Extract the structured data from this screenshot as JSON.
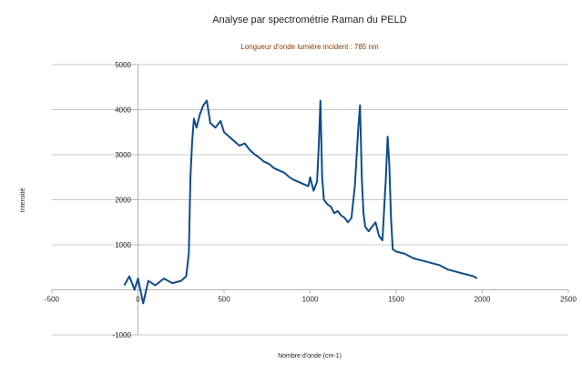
{
  "chart_data": {
    "type": "line",
    "title": "Analyse par spectrométrie Raman du PELD",
    "subtitle": "Longueur d'onde lumière incident : 785 nm",
    "xlabel": "Nombre d'onde (cm-1)",
    "ylabel": "Intensité",
    "xlim": [
      -500,
      2500
    ],
    "ylim": [
      -1000,
      5000
    ],
    "x_ticks": [
      -500,
      0,
      500,
      1000,
      1500,
      2000,
      2500
    ],
    "y_ticks": [
      -1000,
      0,
      1000,
      2000,
      3000,
      4000,
      5000
    ],
    "x_tick_labels": [
      "-500",
      "0",
      "500",
      "1000",
      "1500",
      "2000",
      "2500"
    ],
    "y_tick_labels": [
      "-1000",
      "",
      "1000",
      "2000",
      "3000",
      "4000",
      "5000"
    ],
    "grid": "horizontal",
    "legend": "none",
    "series": [
      {
        "color": "#0f4c8a",
        "x": [
          -80,
          -50,
          -20,
          0,
          30,
          60,
          100,
          150,
          200,
          250,
          280,
          295,
          305,
          315,
          325,
          340,
          360,
          380,
          400,
          420,
          450,
          480,
          500,
          530,
          560,
          590,
          620,
          650,
          680,
          700,
          730,
          760,
          790,
          820,
          850,
          880,
          900,
          930,
          960,
          990,
          1000,
          1020,
          1040,
          1050,
          1060,
          1070,
          1080,
          1100,
          1120,
          1140,
          1160,
          1180,
          1200,
          1220,
          1240,
          1260,
          1280,
          1290,
          1300,
          1310,
          1320,
          1340,
          1360,
          1380,
          1400,
          1420,
          1440,
          1450,
          1460,
          1470,
          1480,
          1500,
          1550,
          1600,
          1650,
          1700,
          1750,
          1800,
          1850,
          1900,
          1950,
          1970
        ],
        "y": [
          100,
          300,
          0,
          250,
          -300,
          200,
          100,
          250,
          150,
          200,
          300,
          800,
          2500,
          3300,
          3800,
          3600,
          3900,
          4100,
          4200,
          3700,
          3600,
          3750,
          3500,
          3400,
          3300,
          3200,
          3250,
          3100,
          3000,
          2950,
          2850,
          2800,
          2700,
          2650,
          2600,
          2500,
          2450,
          2400,
          2350,
          2300,
          2500,
          2200,
          2400,
          3200,
          4200,
          2500,
          2000,
          1900,
          1850,
          1700,
          1750,
          1650,
          1600,
          1500,
          1600,
          2300,
          3600,
          4100,
          2500,
          1700,
          1400,
          1300,
          1400,
          1500,
          1200,
          1100,
          2500,
          3400,
          2800,
          1600,
          900,
          850,
          800,
          700,
          650,
          600,
          550,
          450,
          400,
          350,
          300,
          250
        ]
      }
    ]
  }
}
